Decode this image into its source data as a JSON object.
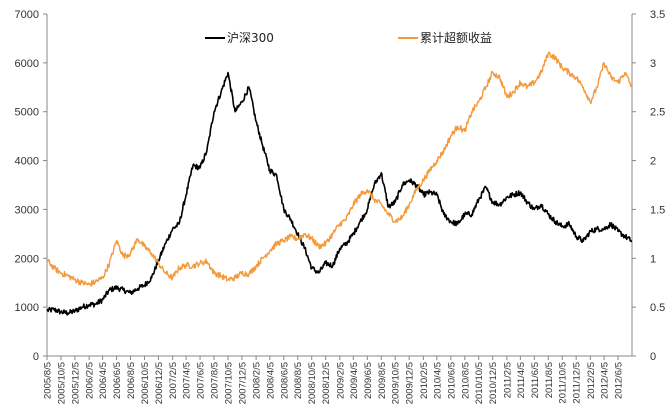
{
  "chart_data": {
    "type": "line",
    "title": "",
    "xlabel": "",
    "ylabel_left": "",
    "ylabel_right": "",
    "grid": false,
    "legend_placement": "top",
    "y_left": {
      "min": 0,
      "max": 7000,
      "ticks": [
        "0",
        "1000",
        "2000",
        "3000",
        "4000",
        "5000",
        "6000",
        "7000"
      ]
    },
    "y_right": {
      "min": 0,
      "max": 3.5,
      "ticks": [
        "0",
        "0.5",
        "1",
        "1.5",
        "2",
        "2.5",
        "3",
        "3.5"
      ]
    },
    "x_range": [
      "2005/8/5",
      "2012/8/5"
    ],
    "x_tick_labels": [
      "2005/8/5",
      "2005/10/5",
      "2005/12/5",
      "2006/2/5",
      "2006/4/5",
      "2006/6/5",
      "2006/8/5",
      "2006/10/5",
      "2006/12/5",
      "2007/2/5",
      "2007/4/5",
      "2007/6/5",
      "2007/8/5",
      "2007/10/5",
      "2007/12/5",
      "2008/2/5",
      "2008/4/5",
      "2008/6/5",
      "2008/8/5",
      "2008/10/5",
      "2008/12/5",
      "2009/2/5",
      "2009/4/5",
      "2009/6/5",
      "2009/8/5",
      "2009/10/5",
      "2009/12/5",
      "2010/2/5",
      "2010/4/5",
      "2010/6/5",
      "2010/8/5",
      "2010/10/5",
      "2010/12/5",
      "2011/2/5",
      "2011/4/5",
      "2011/6/5",
      "2011/8/5",
      "2011/10/5",
      "2011/12/5",
      "2012/2/5",
      "2012/4/5",
      "2012/6/5"
    ],
    "series": [
      {
        "name": "沪深300",
        "axis": "left",
        "color": "#000000",
        "points": [
          [
            "2005/8/5",
            930
          ],
          [
            "2005/9/5",
            950
          ],
          [
            "2005/10/5",
            900
          ],
          [
            "2005/11/5",
            880
          ],
          [
            "2005/12/5",
            920
          ],
          [
            "2006/1/5",
            1000
          ],
          [
            "2006/2/5",
            1050
          ],
          [
            "2006/3/5",
            1060
          ],
          [
            "2006/4/5",
            1150
          ],
          [
            "2006/5/5",
            1350
          ],
          [
            "2006/6/5",
            1400
          ],
          [
            "2006/7/5",
            1350
          ],
          [
            "2006/8/5",
            1290
          ],
          [
            "2006/9/5",
            1380
          ],
          [
            "2006/10/5",
            1450
          ],
          [
            "2006/11/5",
            1600
          ],
          [
            "2006/12/5",
            1950
          ],
          [
            "2007/1/5",
            2300
          ],
          [
            "2007/2/5",
            2600
          ],
          [
            "2007/3/5",
            2700
          ],
          [
            "2007/4/5",
            3300
          ],
          [
            "2007/5/5",
            3900
          ],
          [
            "2007/6/5",
            3850
          ],
          [
            "2007/7/5",
            4200
          ],
          [
            "2007/8/5",
            5000
          ],
          [
            "2007/9/5",
            5400
          ],
          [
            "2007/10/5",
            5800
          ],
          [
            "2007/11/5",
            5000
          ],
          [
            "2007/12/5",
            5200
          ],
          [
            "2008/1/5",
            5500
          ],
          [
            "2008/2/5",
            4800
          ],
          [
            "2008/3/5",
            4300
          ],
          [
            "2008/4/5",
            3800
          ],
          [
            "2008/5/5",
            3700
          ],
          [
            "2008/6/5",
            3000
          ],
          [
            "2008/7/5",
            2800
          ],
          [
            "2008/8/5",
            2500
          ],
          [
            "2008/9/5",
            2200
          ],
          [
            "2008/10/5",
            1800
          ],
          [
            "2008/11/5",
            1700
          ],
          [
            "2008/12/5",
            1900
          ],
          [
            "2009/1/5",
            1850
          ],
          [
            "2009/2/5",
            2200
          ],
          [
            "2009/3/5",
            2300
          ],
          [
            "2009/4/5",
            2500
          ],
          [
            "2009/5/5",
            2750
          ],
          [
            "2009/6/5",
            3000
          ],
          [
            "2009/7/5",
            3500
          ],
          [
            "2009/8/5",
            3750
          ],
          [
            "2009/9/5",
            3050
          ],
          [
            "2009/10/5",
            3150
          ],
          [
            "2009/11/5",
            3500
          ],
          [
            "2009/12/5",
            3600
          ],
          [
            "2010/1/5",
            3500
          ],
          [
            "2010/2/5",
            3300
          ],
          [
            "2010/3/5",
            3350
          ],
          [
            "2010/4/5",
            3300
          ],
          [
            "2010/5/5",
            2900
          ],
          [
            "2010/6/5",
            2750
          ],
          [
            "2010/7/5",
            2700
          ],
          [
            "2010/8/5",
            2900
          ],
          [
            "2010/9/5",
            2900
          ],
          [
            "2010/10/5",
            3200
          ],
          [
            "2010/11/5",
            3450
          ],
          [
            "2010/12/5",
            3150
          ],
          [
            "2011/1/5",
            3100
          ],
          [
            "2011/2/5",
            3250
          ],
          [
            "2011/3/5",
            3300
          ],
          [
            "2011/4/5",
            3350
          ],
          [
            "2011/5/5",
            3150
          ],
          [
            "2011/6/5",
            3000
          ],
          [
            "2011/7/5",
            3100
          ],
          [
            "2011/8/5",
            2900
          ],
          [
            "2011/9/5",
            2750
          ],
          [
            "2011/10/5",
            2650
          ],
          [
            "2011/11/5",
            2700
          ],
          [
            "2011/12/5",
            2450
          ],
          [
            "2012/1/5",
            2350
          ],
          [
            "2012/2/5",
            2550
          ],
          [
            "2012/3/5",
            2600
          ],
          [
            "2012/4/5",
            2600
          ],
          [
            "2012/5/5",
            2700
          ],
          [
            "2012/6/5",
            2550
          ],
          [
            "2012/7/5",
            2450
          ],
          [
            "2012/8/5",
            2350
          ]
        ]
      },
      {
        "name": "累计超额收益",
        "axis": "right",
        "color": "#F39A3C",
        "points": [
          [
            "2005/8/5",
            0.98
          ],
          [
            "2005/9/5",
            0.9
          ],
          [
            "2005/10/5",
            0.85
          ],
          [
            "2005/11/5",
            0.82
          ],
          [
            "2005/12/5",
            0.78
          ],
          [
            "2006/1/5",
            0.75
          ],
          [
            "2006/2/5",
            0.73
          ],
          [
            "2006/3/5",
            0.76
          ],
          [
            "2006/4/5",
            0.8
          ],
          [
            "2006/5/5",
            0.95
          ],
          [
            "2006/6/5",
            1.18
          ],
          [
            "2006/7/5",
            1.02
          ],
          [
            "2006/8/5",
            1.05
          ],
          [
            "2006/9/5",
            1.2
          ],
          [
            "2006/10/5",
            1.12
          ],
          [
            "2006/11/5",
            1.05
          ],
          [
            "2006/12/5",
            0.95
          ],
          [
            "2007/1/5",
            0.85
          ],
          [
            "2007/2/5",
            0.8
          ],
          [
            "2007/3/5",
            0.9
          ],
          [
            "2007/4/5",
            0.93
          ],
          [
            "2007/5/5",
            0.92
          ],
          [
            "2007/6/5",
            0.95
          ],
          [
            "2007/7/5",
            0.97
          ],
          [
            "2007/8/5",
            0.85
          ],
          [
            "2007/9/5",
            0.82
          ],
          [
            "2007/10/5",
            0.78
          ],
          [
            "2007/11/5",
            0.8
          ],
          [
            "2007/12/5",
            0.85
          ],
          [
            "2008/1/5",
            0.84
          ],
          [
            "2008/2/5",
            0.92
          ],
          [
            "2008/3/5",
            1.0
          ],
          [
            "2008/4/5",
            1.08
          ],
          [
            "2008/5/5",
            1.15
          ],
          [
            "2008/6/5",
            1.18
          ],
          [
            "2008/7/5",
            1.22
          ],
          [
            "2008/8/5",
            1.2
          ],
          [
            "2008/9/5",
            1.25
          ],
          [
            "2008/10/5",
            1.2
          ],
          [
            "2008/11/5",
            1.12
          ],
          [
            "2008/12/5",
            1.15
          ],
          [
            "2009/1/5",
            1.25
          ],
          [
            "2009/2/5",
            1.35
          ],
          [
            "2009/3/5",
            1.4
          ],
          [
            "2009/4/5",
            1.55
          ],
          [
            "2009/5/5",
            1.65
          ],
          [
            "2009/6/5",
            1.7
          ],
          [
            "2009/7/5",
            1.6
          ],
          [
            "2009/8/5",
            1.55
          ],
          [
            "2009/9/5",
            1.45
          ],
          [
            "2009/10/5",
            1.38
          ],
          [
            "2009/11/5",
            1.42
          ],
          [
            "2009/12/5",
            1.55
          ],
          [
            "2010/1/5",
            1.7
          ],
          [
            "2010/2/5",
            1.8
          ],
          [
            "2010/3/5",
            1.9
          ],
          [
            "2010/4/5",
            2.0
          ],
          [
            "2010/5/5",
            2.1
          ],
          [
            "2010/6/5",
            2.25
          ],
          [
            "2010/7/5",
            2.35
          ],
          [
            "2010/8/5",
            2.3
          ],
          [
            "2010/9/5",
            2.5
          ],
          [
            "2010/10/5",
            2.6
          ],
          [
            "2010/11/5",
            2.75
          ],
          [
            "2010/12/5",
            2.9
          ],
          [
            "2011/1/5",
            2.85
          ],
          [
            "2011/2/5",
            2.65
          ],
          [
            "2011/3/5",
            2.7
          ],
          [
            "2011/4/5",
            2.8
          ],
          [
            "2011/5/5",
            2.75
          ],
          [
            "2011/6/5",
            2.8
          ],
          [
            "2011/7/5",
            2.9
          ],
          [
            "2011/8/5",
            3.1
          ],
          [
            "2011/9/5",
            3.05
          ],
          [
            "2011/10/5",
            2.95
          ],
          [
            "2011/11/5",
            2.9
          ],
          [
            "2011/12/5",
            2.85
          ],
          [
            "2012/1/5",
            2.75
          ],
          [
            "2012/2/5",
            2.6
          ],
          [
            "2012/3/5",
            2.75
          ],
          [
            "2012/4/5",
            3.0
          ],
          [
            "2012/5/5",
            2.85
          ],
          [
            "2012/6/5",
            2.8
          ],
          [
            "2012/7/5",
            2.9
          ],
          [
            "2012/8/5",
            2.75
          ]
        ]
      }
    ]
  }
}
